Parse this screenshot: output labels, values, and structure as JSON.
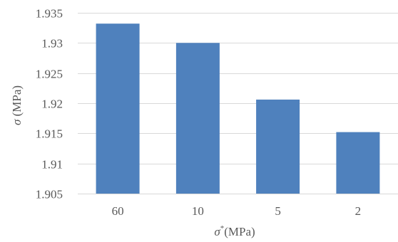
{
  "chart_data": {
    "type": "bar",
    "categories": [
      "60",
      "10",
      "5",
      "2"
    ],
    "values": [
      1.9332,
      1.93,
      1.9206,
      1.9152
    ],
    "xlabel_symbol": "σ",
    "xlabel_superscript": "*",
    "xlabel_unit": "(MPa)",
    "ylabel_symbol": "σ",
    "ylabel_unit": " (MPa)",
    "ylim": [
      1.905,
      1.935
    ],
    "yticks": [
      1.905,
      1.91,
      1.915,
      1.92,
      1.925,
      1.93,
      1.935
    ],
    "ytick_labels": [
      "1.905",
      "1.91",
      "1.915",
      "1.92",
      "1.925",
      "1.93",
      "1.935"
    ],
    "grid": true,
    "legend": "none",
    "bar_color": "#4f81bd"
  }
}
